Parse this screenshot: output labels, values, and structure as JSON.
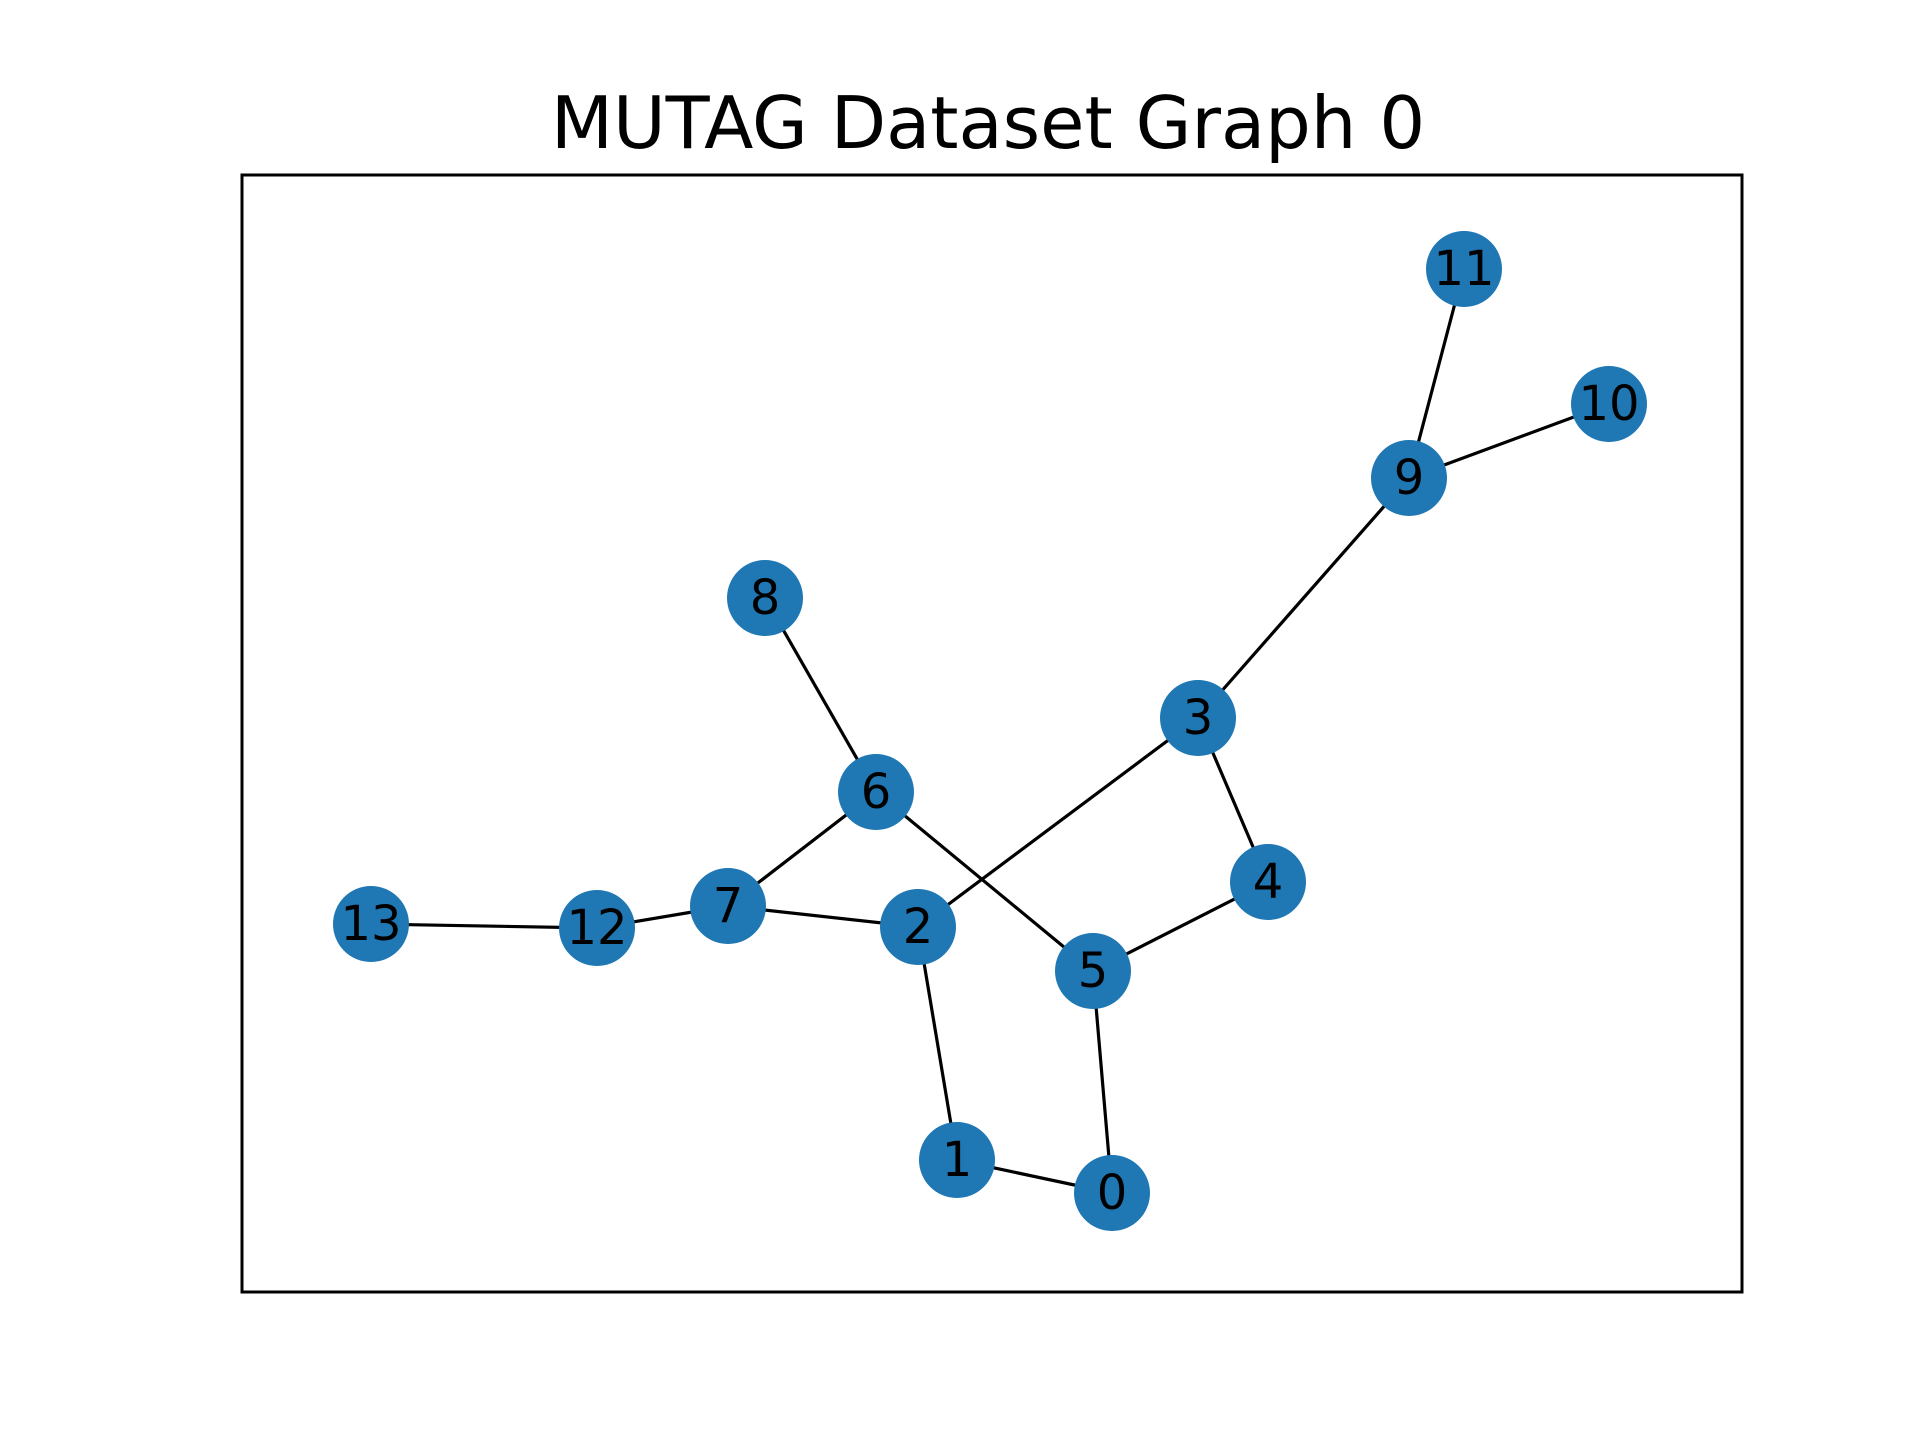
{
  "title": "MUTAG Dataset Graph 0",
  "colors": {
    "node_fill": "#1f77b4",
    "edge": "#000000",
    "label": "#000000",
    "frame": "#000000"
  },
  "nodes": [
    {
      "id": 0,
      "label": "0"
    },
    {
      "id": 1,
      "label": "1"
    },
    {
      "id": 2,
      "label": "2"
    },
    {
      "id": 3,
      "label": "3"
    },
    {
      "id": 4,
      "label": "4"
    },
    {
      "id": 5,
      "label": "5"
    },
    {
      "id": 6,
      "label": "6"
    },
    {
      "id": 7,
      "label": "7"
    },
    {
      "id": 8,
      "label": "8"
    },
    {
      "id": 9,
      "label": "9"
    },
    {
      "id": 10,
      "label": "10"
    },
    {
      "id": 11,
      "label": "11"
    },
    {
      "id": 12,
      "label": "12"
    },
    {
      "id": 13,
      "label": "13"
    }
  ],
  "edges": [
    [
      0,
      1
    ],
    [
      0,
      5
    ],
    [
      1,
      2
    ],
    [
      2,
      3
    ],
    [
      2,
      7
    ],
    [
      3,
      4
    ],
    [
      3,
      9
    ],
    [
      4,
      5
    ],
    [
      5,
      6
    ],
    [
      6,
      7
    ],
    [
      6,
      8
    ],
    [
      7,
      12
    ],
    [
      9,
      10
    ],
    [
      9,
      11
    ],
    [
      12,
      13
    ]
  ]
}
